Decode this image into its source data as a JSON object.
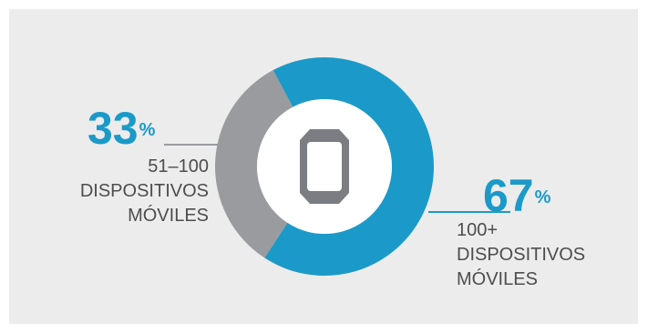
{
  "colors": {
    "background": "#ececec",
    "primary": "#1b9ac9",
    "secondary": "#9a9b9f",
    "center": "#ffffff",
    "icon": "#7b7d82",
    "text": "#4d4d4d"
  },
  "center_icon": "mobile-device-icon",
  "chart_data": {
    "type": "pie",
    "style": "donut",
    "categories": [
      "51–100 DISPOSITIVOS MÓVILES",
      "100+ DISPOSITIVOS MÓVILES"
    ],
    "values": [
      33,
      67
    ],
    "unit": "%",
    "colors": [
      "#9a9b9f",
      "#1b9ac9"
    ],
    "labels": [
      {
        "value_text": "33",
        "unit": "%",
        "lines": [
          "51–100",
          "DISPOSITIVOS",
          "MÓVILES"
        ]
      },
      {
        "value_text": "67",
        "unit": "%",
        "lines": [
          "100+",
          "DISPOSITIVOS",
          "MÓVILES"
        ]
      }
    ]
  }
}
